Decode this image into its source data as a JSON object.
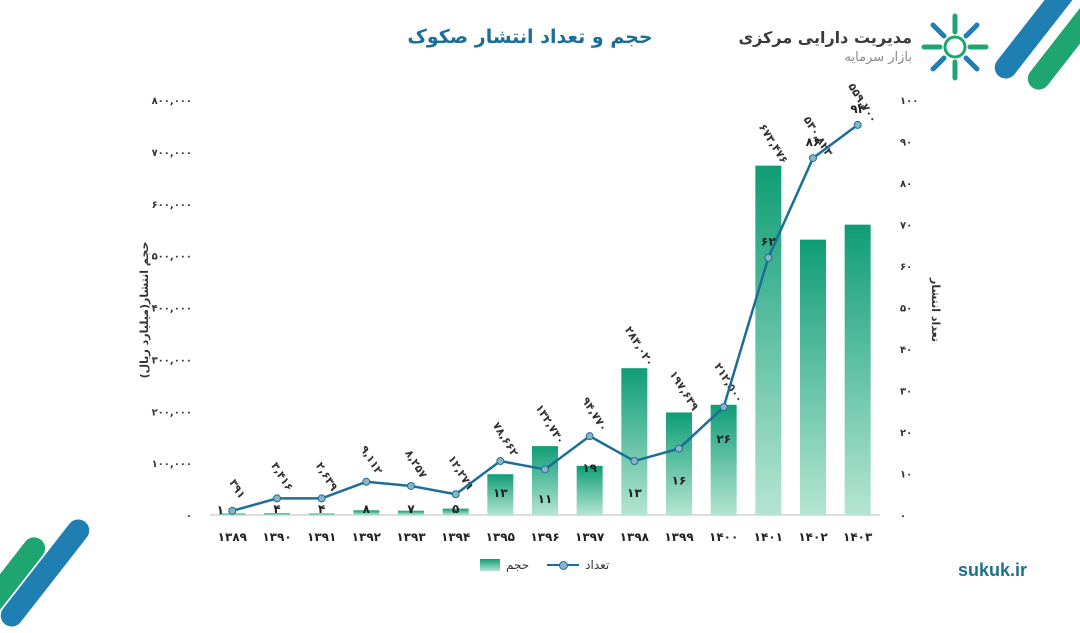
{
  "header": {
    "title": "حجم و تعداد انتشار صکوک",
    "org_name": "مدیریت دارایی مرکزی",
    "org_sub": "بازار سرمایه"
  },
  "footer": {
    "site": "sukuk.ir"
  },
  "colors": {
    "bar_top": "#0f9d76",
    "bar_bottom": "#b5e5d2",
    "line": "#1b6f96",
    "title": "#1b6f96",
    "accent_blue": "#1f7fb3",
    "accent_green": "#1fa572"
  },
  "chart_data": {
    "type": "bar",
    "categories": [
      "۱۳۸۹",
      "۱۳۹۰",
      "۱۳۹۱",
      "۱۳۹۲",
      "۱۳۹۳",
      "۱۳۹۴",
      "۱۳۹۵",
      "۱۳۹۶",
      "۱۳۹۷",
      "۱۳۹۸",
      "۱۳۹۹",
      "۱۴۰۰",
      "۱۴۰۱",
      "۱۴۰۲",
      "۱۴۰۳"
    ],
    "ylabel": "حجم انتشار(میلیارد ریال)",
    "y2label": "تعداد انتشار",
    "ylim": [
      0,
      800000
    ],
    "y2lim": [
      0,
      100
    ],
    "y_ticks": [
      "۰",
      "۱۰۰,۰۰۰",
      "۲۰۰,۰۰۰",
      "۳۰۰,۰۰۰",
      "۴۰۰,۰۰۰",
      "۵۰۰,۰۰۰",
      "۶۰۰,۰۰۰",
      "۷۰۰,۰۰۰",
      "۸۰۰,۰۰۰"
    ],
    "y2_ticks": [
      "۰",
      "۱۰",
      "۲۰",
      "۳۰",
      "۴۰",
      "۵۰",
      "۶۰",
      "۷۰",
      "۸۰",
      "۹۰",
      "۱۰۰"
    ],
    "legend_position": "bottom",
    "grid": false,
    "series": [
      {
        "name": "حجم",
        "type": "bar",
        "axis": "left",
        "values": [
          391,
          3416,
          2639,
          9112,
          8257,
          12279,
          78662,
          132730,
          94770,
          283020,
          197639,
          212500,
          673476,
          530823,
          559700
        ],
        "labels": [
          "۳۹۱",
          "۳,۴۱۶",
          "۲,۶۳۹",
          "۹,۱۱۲",
          "۸,۲۵۷",
          "۱۲,۲۷۹",
          "۷۸,۶۶۲",
          "۱۳۲,۷۳۰",
          "۹۴,۷۷۰",
          "۲۸۳,۰۲۰",
          "۱۹۷,۶۳۹",
          "۲۱۲,۵۰۰",
          "۶۷۳,۴۷۶",
          "۵۳۰,۸۲۳",
          "۵۵۹,۷۰۰"
        ]
      },
      {
        "name": "تعداد",
        "type": "line",
        "axis": "right",
        "values": [
          1,
          4,
          4,
          8,
          7,
          5,
          13,
          11,
          19,
          13,
          16,
          26,
          62,
          86,
          94
        ],
        "labels": [
          "۱",
          "۴",
          "۴",
          "۸",
          "۷",
          "۵",
          "۱۳",
          "۱۱",
          "۱۹",
          "۱۳",
          "۱۶",
          "۲۶",
          "۶۲",
          "۸۶",
          "۹۴"
        ]
      }
    ]
  }
}
